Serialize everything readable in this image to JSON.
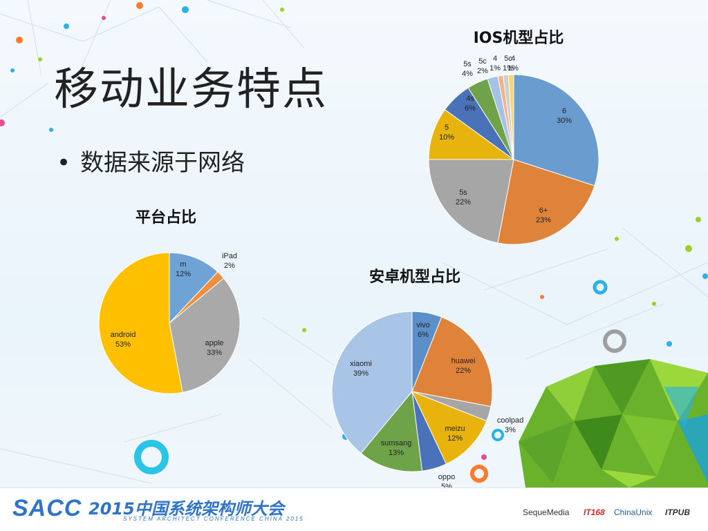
{
  "slide": {
    "title": "移动业务特点",
    "bullet": "数据来源于网络"
  },
  "chart_data": [
    {
      "type": "pie",
      "title": "平台占比",
      "slices": [
        {
          "name": "m",
          "value": 12,
          "label": "12%",
          "color": "#6fa3d6"
        },
        {
          "name": "iPad",
          "value": 2,
          "label": "2%",
          "color": "#ef8e3c"
        },
        {
          "name": "apple",
          "value": 33,
          "label": "33%",
          "color": "#a9a9a9"
        },
        {
          "name": "android",
          "value": 53,
          "label": "53%",
          "color": "#fec000"
        }
      ]
    },
    {
      "type": "pie",
      "title": "IOS机型占比",
      "slices": [
        {
          "name": "6",
          "value": 30,
          "label": "30%",
          "color": "#6b9ccf"
        },
        {
          "name": "6+",
          "value": 23,
          "label": "23%",
          "color": "#e0833a"
        },
        {
          "name": "5s",
          "value": 22,
          "label": "22%",
          "color": "#a6a6a6"
        },
        {
          "name": "5",
          "value": 10,
          "label": "10%",
          "color": "#e8b30c"
        },
        {
          "name": "4s",
          "value": 6,
          "label": "6%",
          "color": "#4a72b8"
        },
        {
          "name": "5s",
          "value": 4,
          "label": "4%",
          "color": "#6fa34a"
        },
        {
          "name": "5c",
          "value": 2,
          "label": "2%",
          "color": "#a5c2e6"
        },
        {
          "name": "4",
          "value": 1,
          "label": "1%",
          "color": "#f2b48a"
        },
        {
          "name": "5c",
          "value": 1,
          "label": "1%",
          "color": "#cfcfcf"
        },
        {
          "name": "4",
          "value": 1,
          "label": "1%",
          "color": "#f6d675"
        }
      ]
    },
    {
      "type": "pie",
      "title": "安卓机型占比",
      "slices": [
        {
          "name": "vivo",
          "value": 6,
          "label": "6%",
          "color": "#5b8fc9"
        },
        {
          "name": "huawei",
          "value": 22,
          "label": "22%",
          "color": "#e0833a"
        },
        {
          "name": "coolpad",
          "value": 3,
          "label": "3%",
          "color": "#a6a6a6"
        },
        {
          "name": "meizu",
          "value": 12,
          "label": "12%",
          "color": "#e8b30c"
        },
        {
          "name": "oppo",
          "value": 5,
          "label": "5%",
          "color": "#4a72b8"
        },
        {
          "name": "sumsang",
          "value": 13,
          "label": "13%",
          "color": "#6fa34a"
        },
        {
          "name": "xiaomi",
          "value": 39,
          "label": "39%",
          "color": "#a8c4e6"
        }
      ]
    }
  ],
  "footer": {
    "logo": "SACC",
    "conference": "2015中国系统架构师大会",
    "subtitle": "SYSTEM ARCHITECT CONFERENCE CHINA 2015",
    "sponsors": [
      "SequeMedia",
      "IT168",
      "ChinaUnix",
      "ITPUB"
    ]
  }
}
